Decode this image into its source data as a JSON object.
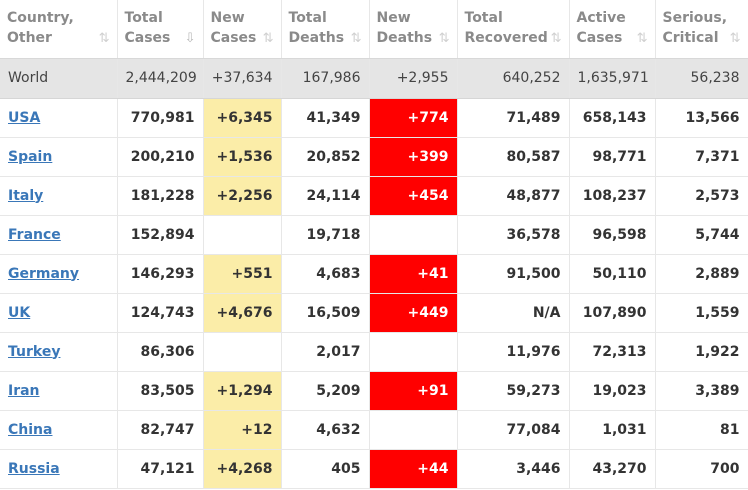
{
  "header": {
    "country": [
      "Country,",
      "Other"
    ],
    "total_cases": [
      "Total",
      "Cases"
    ],
    "new_cases": [
      "New",
      "Cases"
    ],
    "total_deaths": [
      "Total",
      "Deaths"
    ],
    "new_deaths": [
      "New",
      "Deaths"
    ],
    "total_recovered": [
      "Total",
      "Recovered"
    ],
    "active_cases": [
      "Active",
      "Cases"
    ],
    "serious_critical": [
      "Serious,",
      "Critical"
    ],
    "sort_icon": "⇅",
    "sort_active_icon": "⇩"
  },
  "world": {
    "country": "World",
    "total_cases": "2,444,209",
    "new_cases": "+37,634",
    "total_deaths": "167,986",
    "new_deaths": "+2,955",
    "total_recovered": "640,252",
    "active_cases": "1,635,971",
    "serious_critical": "56,238"
  },
  "rows": [
    {
      "country": "USA",
      "total_cases": "770,981",
      "new_cases": "+6,345",
      "total_deaths": "41,349",
      "new_deaths": "+774",
      "total_recovered": "71,489",
      "active_cases": "658,143",
      "serious_critical": "13,566"
    },
    {
      "country": "Spain",
      "total_cases": "200,210",
      "new_cases": "+1,536",
      "total_deaths": "20,852",
      "new_deaths": "+399",
      "total_recovered": "80,587",
      "active_cases": "98,771",
      "serious_critical": "7,371"
    },
    {
      "country": "Italy",
      "total_cases": "181,228",
      "new_cases": "+2,256",
      "total_deaths": "24,114",
      "new_deaths": "+454",
      "total_recovered": "48,877",
      "active_cases": "108,237",
      "serious_critical": "2,573"
    },
    {
      "country": "France",
      "total_cases": "152,894",
      "new_cases": "",
      "total_deaths": "19,718",
      "new_deaths": "",
      "total_recovered": "36,578",
      "active_cases": "96,598",
      "serious_critical": "5,744"
    },
    {
      "country": "Germany",
      "total_cases": "146,293",
      "new_cases": "+551",
      "total_deaths": "4,683",
      "new_deaths": "+41",
      "total_recovered": "91,500",
      "active_cases": "50,110",
      "serious_critical": "2,889"
    },
    {
      "country": "UK",
      "total_cases": "124,743",
      "new_cases": "+4,676",
      "total_deaths": "16,509",
      "new_deaths": "+449",
      "total_recovered": "N/A",
      "active_cases": "107,890",
      "serious_critical": "1,559"
    },
    {
      "country": "Turkey",
      "total_cases": "86,306",
      "new_cases": "",
      "total_deaths": "2,017",
      "new_deaths": "",
      "total_recovered": "11,976",
      "active_cases": "72,313",
      "serious_critical": "1,922"
    },
    {
      "country": "Iran",
      "total_cases": "83,505",
      "new_cases": "+1,294",
      "total_deaths": "5,209",
      "new_deaths": "+91",
      "total_recovered": "59,273",
      "active_cases": "19,023",
      "serious_critical": "3,389"
    },
    {
      "country": "China",
      "total_cases": "82,747",
      "new_cases": "+12",
      "total_deaths": "4,632",
      "new_deaths": "",
      "total_recovered": "77,084",
      "active_cases": "1,031",
      "serious_critical": "81"
    },
    {
      "country": "Russia",
      "total_cases": "47,121",
      "new_cases": "+4,268",
      "total_deaths": "405",
      "new_deaths": "+44",
      "total_recovered": "3,446",
      "active_cases": "43,270",
      "serious_critical": "700"
    }
  ],
  "colors": {
    "new_cases_highlight": "#fbeda8",
    "new_deaths_highlight": "#ff0000",
    "link": "#3a77b8",
    "world_row_bg": "#e5e5e5"
  }
}
